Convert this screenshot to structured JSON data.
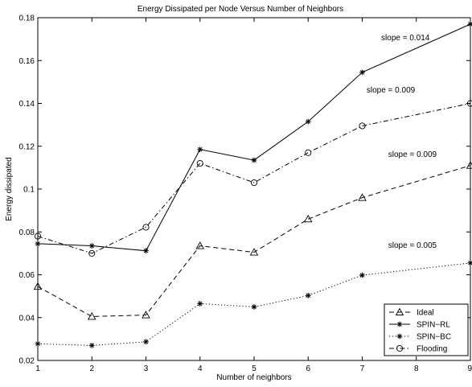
{
  "chart_data": {
    "type": "line",
    "title": "Energy Dissipated per Node Versus Number of Neighbors",
    "xlabel": "Number of neighbors",
    "ylabel": "Energy dissipated",
    "xlim": [
      1,
      9
    ],
    "ylim": [
      0.02,
      0.18
    ],
    "xticks": [
      "1",
      "2",
      "3",
      "4",
      "5",
      "6",
      "7",
      "8",
      "9"
    ],
    "yticks": [
      "0.02",
      "0.04",
      "0.06",
      "0.08",
      "0.1",
      "0.12",
      "0.14",
      "0.16",
      "0.18"
    ],
    "grid": false,
    "legend_position": "bottom-right",
    "series": [
      {
        "name": "Ideal",
        "marker": "triangle",
        "dash": "dashed",
        "x": [
          1,
          2,
          3,
          4,
          5,
          6,
          7,
          9
        ],
        "values": [
          0.0545,
          0.0405,
          0.0412,
          0.0735,
          0.0705,
          0.086,
          0.096,
          0.111
        ]
      },
      {
        "name": "SPIN−RL",
        "marker": "star",
        "dash": "solid",
        "x": [
          1,
          2,
          3,
          4,
          5,
          6,
          7,
          9
        ],
        "values": [
          0.0745,
          0.0735,
          0.0712,
          0.1185,
          0.1135,
          0.1315,
          0.1545,
          0.177
        ]
      },
      {
        "name": "SPIN−BC",
        "marker": "star",
        "dash": "dotted",
        "x": [
          1,
          2,
          3,
          4,
          5,
          6,
          7,
          9
        ],
        "values": [
          0.0278,
          0.027,
          0.0287,
          0.0465,
          0.045,
          0.0503,
          0.0598,
          0.0655
        ]
      },
      {
        "name": "Flooding",
        "marker": "circle",
        "dash": "dashdot",
        "x": [
          1,
          2,
          3,
          4,
          5,
          6,
          7,
          9
        ],
        "values": [
          0.078,
          0.07,
          0.0822,
          0.112,
          0.103,
          0.117,
          0.1295,
          0.14
        ]
      }
    ],
    "annotations": [
      {
        "text": "slope = 0.014",
        "x": 7.35,
        "y": 0.1695
      },
      {
        "text": "slope = 0.009",
        "x": 7.08,
        "y": 0.145
      },
      {
        "text": "slope = 0.009",
        "x": 7.48,
        "y": 0.115
      },
      {
        "text": "slope = 0.005",
        "x": 7.48,
        "y": 0.0725
      }
    ]
  }
}
